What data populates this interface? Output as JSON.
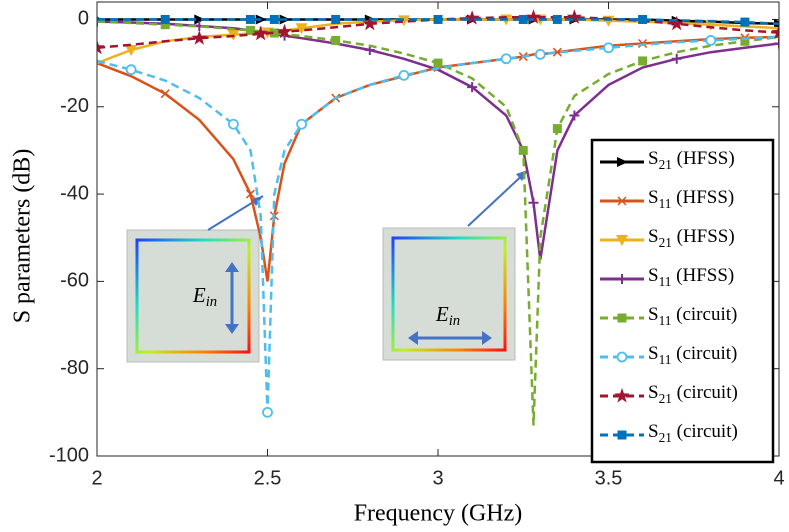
{
  "chart_data": {
    "type": "line",
    "xlabel": "Frequency (GHz)",
    "ylabel": "S parameters (dB)",
    "x": [
      2,
      2.1,
      2.2,
      2.3,
      2.4,
      2.45,
      2.48,
      2.5,
      2.52,
      2.55,
      2.6,
      2.7,
      2.8,
      2.9,
      3,
      3.1,
      3.2,
      3.25,
      3.28,
      3.3,
      3.35,
      3.4,
      3.5,
      3.6,
      3.7,
      3.8,
      3.9,
      4
    ],
    "xlim": [
      2,
      4
    ],
    "xticks": [
      2,
      2.5,
      3,
      3.5,
      4
    ],
    "ylim": [
      -100,
      4
    ],
    "yticks": [
      -100,
      -80,
      -60,
      -40,
      -20,
      0
    ],
    "legend": "right",
    "series": [
      {
        "name": "S21 (HFSS)",
        "color": "#000000",
        "marker": "triangle-right",
        "dash": false,
        "values": [
          0,
          0,
          0,
          0,
          0,
          0,
          0,
          0,
          0,
          0,
          0,
          0,
          0,
          0,
          0,
          0,
          0,
          0,
          0,
          0,
          0,
          0,
          0,
          0,
          -0.3,
          -0.5,
          -0.8,
          -1
        ]
      },
      {
        "name": "S11 (HFSS)",
        "color": "#d95319",
        "marker": "x",
        "dash": false,
        "values": [
          -10,
          -13,
          -17,
          -23,
          -32,
          -40,
          -50,
          -60,
          -45,
          -33,
          -24,
          -18,
          -15,
          -13,
          -11,
          -10,
          -9,
          -8.5,
          -8,
          -8,
          -7.5,
          -7,
          -6,
          -5.5,
          -5,
          -4.5,
          -4.2,
          -4
        ]
      },
      {
        "name": "S21 (HFSS)",
        "color": "#edb120",
        "marker": "triangle-down",
        "dash": false,
        "values": [
          -10,
          -7,
          -5,
          -4,
          -3.5,
          -3.2,
          -3,
          -3,
          -2.8,
          -2.5,
          -2,
          -1,
          -0.5,
          -0.2,
          0,
          0,
          0,
          0,
          0,
          0,
          0,
          0,
          -0.3,
          -0.5,
          -0.8,
          -1.2,
          -1.6,
          -2
        ]
      },
      {
        "name": "S11 (HFSS)",
        "color": "#7e2f8e",
        "marker": "plus",
        "dash": false,
        "values": [
          -0.5,
          -0.7,
          -1,
          -1.5,
          -2,
          -2.5,
          -2.8,
          -3,
          -3.3,
          -3.7,
          -4.3,
          -5.5,
          -7,
          -9,
          -11.5,
          -15.5,
          -22,
          -30,
          -42,
          -55,
          -30,
          -22,
          -15,
          -11,
          -9,
          -7.5,
          -6.5,
          -5.5
        ]
      },
      {
        "name": "S11 (circuit)",
        "color": "#77ac30",
        "marker": "square",
        "dash": true,
        "values": [
          -0.5,
          -0.8,
          -1.2,
          -1.6,
          -2.2,
          -2.5,
          -2.7,
          -2.9,
          -3.1,
          -3.4,
          -3.8,
          -4.8,
          -6,
          -7.8,
          -10,
          -13.5,
          -20,
          -30,
          -93,
          -50,
          -25,
          -17.5,
          -12.5,
          -9.5,
          -7.5,
          -6,
          -5,
          -4
        ]
      },
      {
        "name": "S11 (circuit)",
        "color": "#4dbeee",
        "marker": "circle",
        "dash": true,
        "values": [
          -9.5,
          -11.5,
          -14,
          -18,
          -24,
          -30,
          -45,
          -90,
          -40,
          -30,
          -24,
          -18,
          -15,
          -12.8,
          -11.2,
          -10,
          -9,
          -8.5,
          -8.2,
          -8,
          -7.6,
          -7.2,
          -6.5,
          -5.8,
          -5.2,
          -4.8,
          -4.4,
          -4
        ]
      },
      {
        "name": "S21 (circuit)",
        "color": "#a2142f",
        "marker": "star",
        "dash": true,
        "values": [
          -6.5,
          -5.8,
          -5,
          -4.3,
          -3.8,
          -3.5,
          -3.3,
          -3.2,
          -3,
          -2.8,
          -2.5,
          -1.8,
          -1,
          -0.5,
          0,
          0.3,
          0.5,
          0.5,
          0.5,
          0.5,
          0.5,
          0.5,
          0.2,
          -0.3,
          -1,
          -1.8,
          -2.5,
          -3
        ]
      },
      {
        "name": "S21 (circuit)",
        "color": "#0072bd",
        "marker": "square",
        "dash": true,
        "values": [
          0,
          0,
          0,
          0,
          0,
          0,
          0,
          0,
          0,
          0,
          0,
          0,
          0,
          0,
          0,
          0,
          0,
          0,
          0,
          0,
          0,
          0,
          0,
          0,
          -0.2,
          -0.4,
          -0.6,
          -1
        ]
      }
    ],
    "annotations": [
      "Ein",
      "Ein"
    ]
  }
}
